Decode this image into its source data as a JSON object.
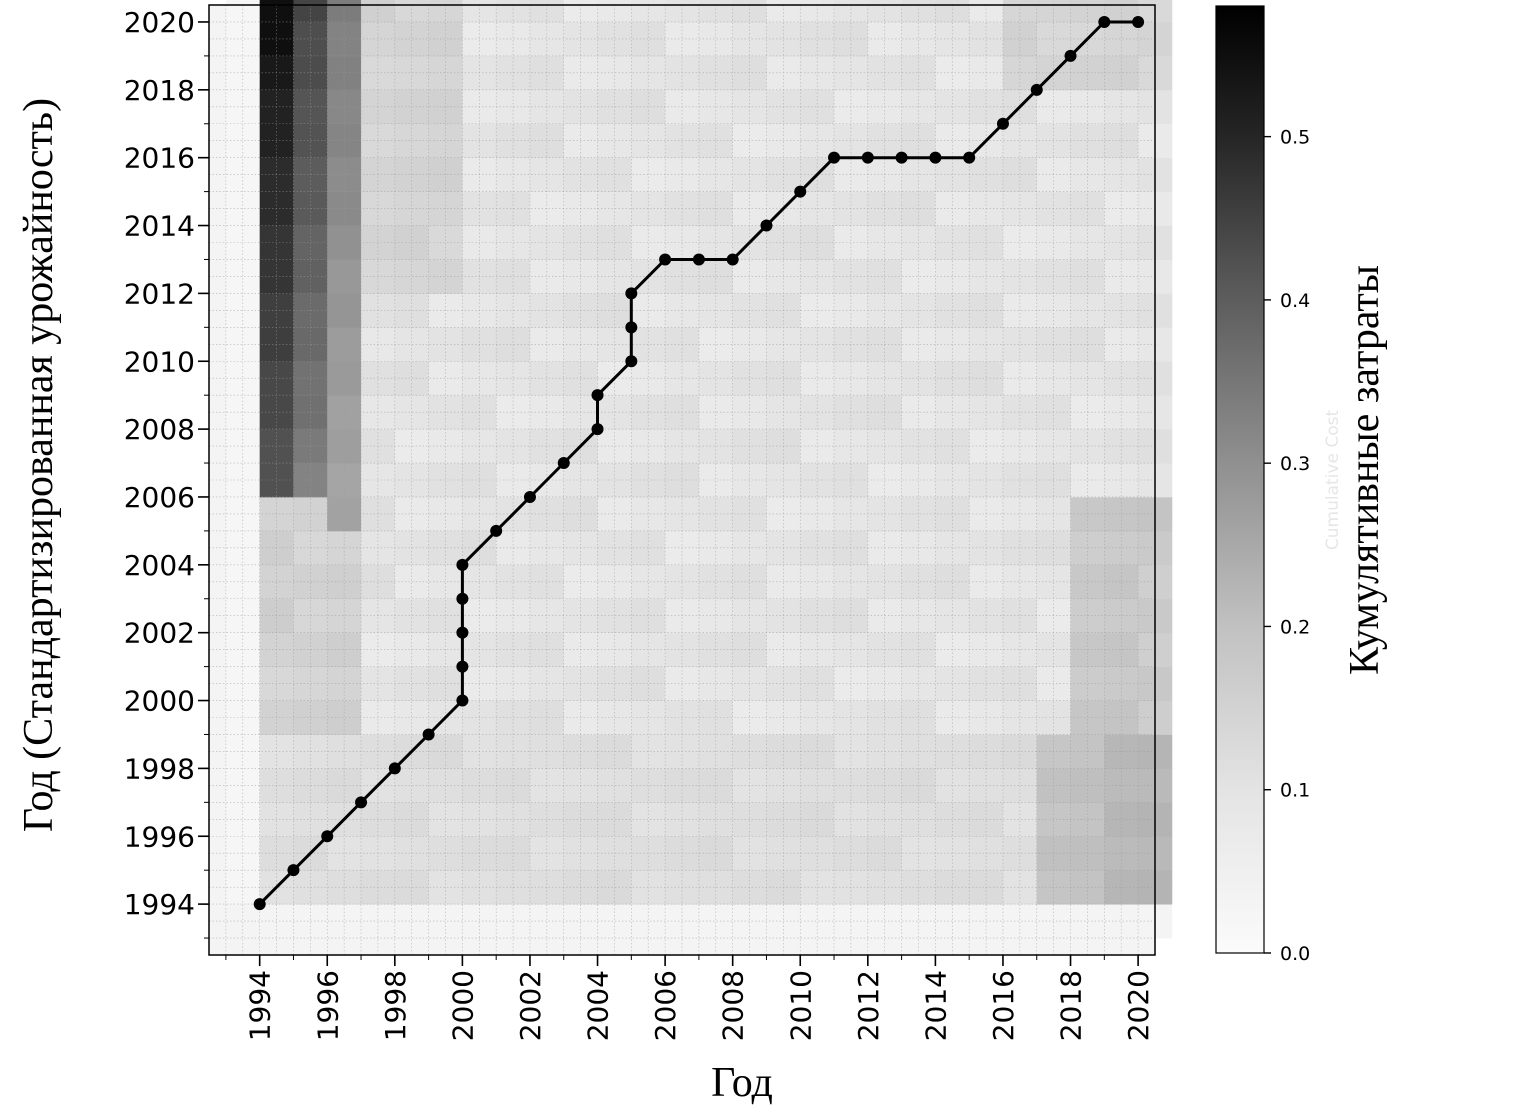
{
  "chart_data": {
    "type": "heatmap",
    "xlabel": "Год",
    "ylabel": "Год (Стандартизированная урожайность)",
    "colorbar_label": "Кумулятивные затраты",
    "colorbar_ghost_label": "Cumulative Cost",
    "x_range": [
      1992.5,
      2020.5
    ],
    "y_range": [
      1992.5,
      2020.5
    ],
    "x_ticks": [
      "1994",
      "1996",
      "1998",
      "2000",
      "2002",
      "2004",
      "2006",
      "2008",
      "2010",
      "2012",
      "2014",
      "2016",
      "2018",
      "2020"
    ],
    "y_ticks": [
      "1994",
      "1996",
      "1998",
      "2000",
      "2002",
      "2004",
      "2006",
      "2008",
      "2010",
      "2012",
      "2014",
      "2016",
      "2018",
      "2020"
    ],
    "colorbar": {
      "range": [
        0.0,
        0.58
      ],
      "ticks": [
        "0.0",
        "0.1",
        "0.2",
        "0.3",
        "0.4",
        "0.5"
      ],
      "colormap": "gray_r"
    },
    "heatmap_description": "cumulative cost matrix, greyscale; darkest in column 1994 at top rows",
    "path": {
      "x": [
        1994,
        1995,
        1996,
        1997,
        1998,
        1999,
        2000,
        2000,
        2000,
        2000,
        2000,
        2001,
        2002,
        2003,
        2004,
        2004,
        2005,
        2005,
        2005,
        2006,
        2007,
        2008,
        2009,
        2010,
        2011,
        2012,
        2013,
        2014,
        2015,
        2016,
        2017,
        2018,
        2019,
        2020
      ],
      "y": [
        1994,
        1995,
        1996,
        1997,
        1998,
        1999,
        2000,
        2001,
        2002,
        2003,
        2004,
        2005,
        2006,
        2007,
        2008,
        2009,
        2010,
        2011,
        2012,
        2013,
        2013,
        2013,
        2014,
        2015,
        2016,
        2016,
        2016,
        2016,
        2016,
        2017,
        2018,
        2019,
        2020,
        2020
      ],
      "color": "#000000"
    },
    "grid": true
  }
}
